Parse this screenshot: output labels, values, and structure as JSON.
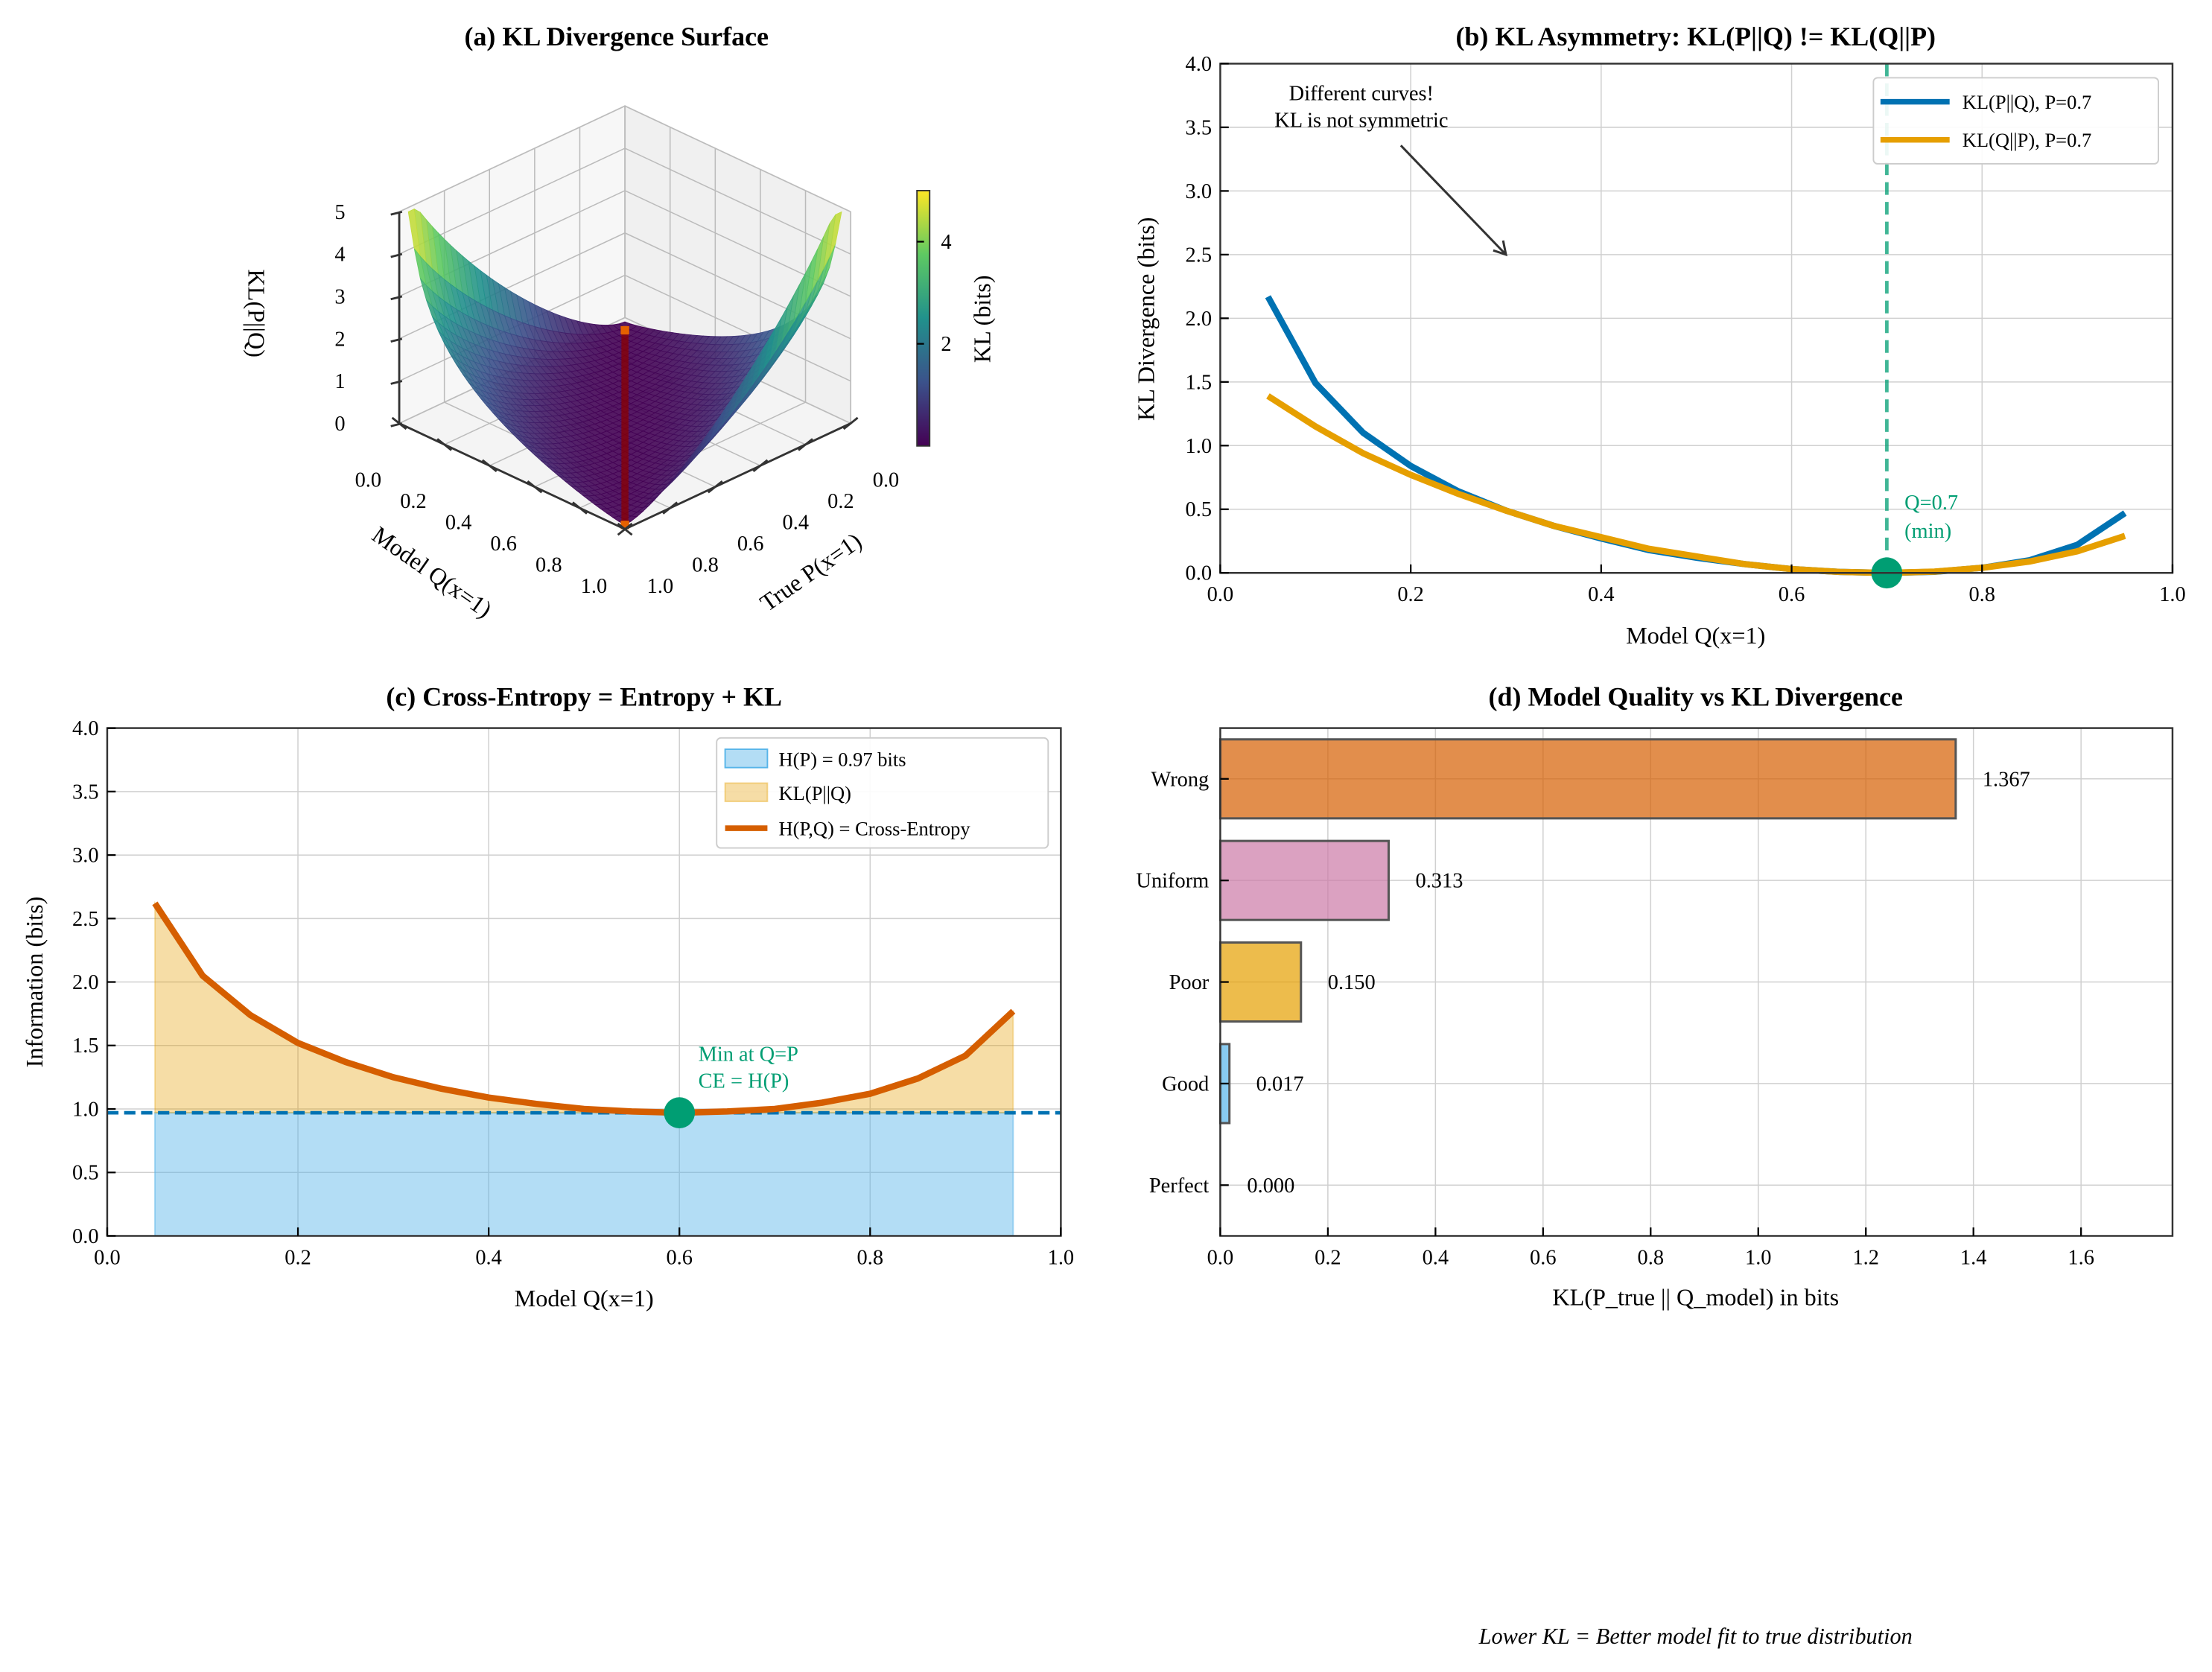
{
  "footer_note": "Lower KL = Better model fit to true distribution",
  "colors": {
    "blue": "#0072B2",
    "orange": "#E69F00",
    "vermillion": "#D55E00",
    "green": "#009E73",
    "pink": "#CC79A7",
    "sky": "#56B4E9"
  },
  "chart_data": [
    {
      "id": "a",
      "type": "surface3d",
      "title": "(a) KL Divergence Surface",
      "xlabel": "Model Q(x=1)",
      "ylabel": "True P(x=1)",
      "zlabel": "KL(P||Q)",
      "x_ticks": [
        "0.0",
        "0.2",
        "0.4",
        "0.6",
        "0.8",
        "1.0"
      ],
      "y_ticks": [
        "0.0",
        "0.2",
        "0.4",
        "0.6",
        "0.8",
        "1.0"
      ],
      "z_ticks": [
        "0",
        "1",
        "2",
        "3",
        "4",
        "5"
      ],
      "xlim": [
        0,
        1
      ],
      "ylim": [
        0,
        1
      ],
      "zlim": [
        0,
        5
      ],
      "colormap": "viridis",
      "colorbar": {
        "label": "KL (bits)",
        "ticks": [
          "2",
          "4"
        ],
        "range": [
          0,
          5
        ]
      },
      "highlight": "Q = P diagonal (KL = 0)"
    },
    {
      "id": "b",
      "type": "line",
      "title": "(b) KL Asymmetry: KL(P||Q) != KL(Q||P)",
      "xlabel": "Model Q(x=1)",
      "ylabel": "KL Divergence (bits)",
      "xlim": [
        0,
        1
      ],
      "ylim": [
        0,
        4
      ],
      "x_ticks": [
        "0.0",
        "0.2",
        "0.4",
        "0.6",
        "0.8",
        "1.0"
      ],
      "y_ticks": [
        "0.0",
        "0.5",
        "1.0",
        "1.5",
        "2.0",
        "2.5",
        "3.0",
        "3.5",
        "4.0"
      ],
      "grid": true,
      "legend_position": "top-right",
      "x": [
        0.05,
        0.1,
        0.15,
        0.2,
        0.25,
        0.3,
        0.35,
        0.4,
        0.45,
        0.5,
        0.55,
        0.6,
        0.65,
        0.7,
        0.75,
        0.8,
        0.85,
        0.9,
        0.95
      ],
      "series": [
        {
          "name": "KL(P||Q), P=0.7",
          "color": "#0072B2",
          "values": [
            2.17,
            1.49,
            1.1,
            0.84,
            0.64,
            0.49,
            0.37,
            0.27,
            0.18,
            0.12,
            0.07,
            0.03,
            0.008,
            0,
            0.009,
            0.04,
            0.1,
            0.22,
            0.47
          ]
        },
        {
          "name": "KL(Q||P), P=0.7",
          "color": "#E69F00",
          "values": [
            1.39,
            1.15,
            0.94,
            0.77,
            0.62,
            0.49,
            0.37,
            0.28,
            0.19,
            0.13,
            0.07,
            0.03,
            0.008,
            0,
            0.01,
            0.04,
            0.09,
            0.17,
            0.29
          ]
        }
      ],
      "vline": {
        "x": 0.7,
        "color": "#009E73"
      },
      "marker": {
        "x": 0.7,
        "y": 0
      },
      "annotations": [
        {
          "lines": [
            "Different curves!",
            "KL is not symmetric"
          ],
          "arrow_to": [
            0.3,
            2.5
          ]
        },
        {
          "lines": [
            "Q=0.7",
            "(min)"
          ]
        }
      ]
    },
    {
      "id": "c",
      "type": "area",
      "title": "(c) Cross-Entropy = Entropy + KL",
      "xlabel": "Model Q(x=1)",
      "ylabel": "Information (bits)",
      "xlim": [
        0,
        1
      ],
      "ylim": [
        0,
        4
      ],
      "x_ticks": [
        "0.0",
        "0.2",
        "0.4",
        "0.6",
        "0.8",
        "1.0"
      ],
      "y_ticks": [
        "0.0",
        "0.5",
        "1.0",
        "1.5",
        "2.0",
        "2.5",
        "3.0",
        "3.5",
        "4.0"
      ],
      "grid": true,
      "legend_position": "top-right",
      "entropy": 0.97,
      "x": [
        0.05,
        0.1,
        0.15,
        0.2,
        0.25,
        0.3,
        0.35,
        0.4,
        0.45,
        0.5,
        0.55,
        0.6,
        0.65,
        0.7,
        0.75,
        0.8,
        0.85,
        0.9,
        0.95
      ],
      "cross_entropy": [
        2.62,
        2.05,
        1.74,
        1.52,
        1.37,
        1.25,
        1.16,
        1.09,
        1.04,
        1.0,
        0.98,
        0.97,
        0.98,
        1.0,
        1.05,
        1.12,
        1.24,
        1.42,
        1.77
      ],
      "legend": [
        "H(P) = 0.97 bits",
        "KL(P||Q)",
        "H(P,Q) = Cross-Entropy"
      ],
      "marker": {
        "x": 0.6,
        "y": 0.97
      },
      "annotation": [
        "Min at Q=P",
        "CE = H(P)"
      ]
    },
    {
      "id": "d",
      "type": "bar",
      "orientation": "horizontal",
      "title": "(d) Model Quality vs KL Divergence",
      "xlabel": "KL(P_true || Q_model) in bits",
      "xlim": [
        0,
        1.77
      ],
      "x_ticks": [
        "0.0",
        "0.2",
        "0.4",
        "0.6",
        "0.8",
        "1.0",
        "1.2",
        "1.4",
        "1.6"
      ],
      "grid": true,
      "categories": [
        "Wrong",
        "Uniform",
        "Poor",
        "Good",
        "Perfect"
      ],
      "values": [
        1.367,
        0.313,
        0.15,
        0.017,
        0.0
      ],
      "labels": [
        "1.367",
        "0.313",
        "0.150",
        "0.017",
        "0.000"
      ],
      "bar_colors": [
        "#D55E00",
        "#CC79A7",
        "#E69F00",
        "#56B4E9",
        "#009E73"
      ]
    }
  ]
}
